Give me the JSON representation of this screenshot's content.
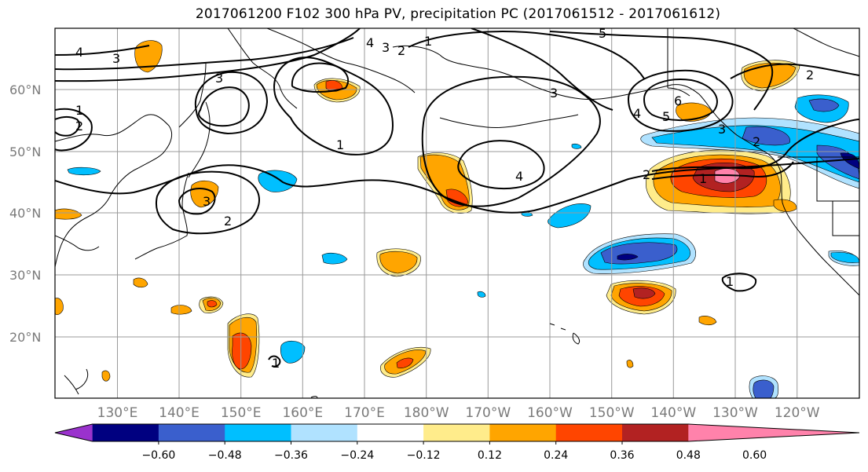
{
  "title": "2017061200 F102 300 hPa PV, precipitation PC (2017061512 - 2017061612)",
  "map": {
    "lat_labels": [
      "60°N",
      "50°N",
      "40°N",
      "30°N",
      "20°N"
    ],
    "lon_labels": [
      "130°E",
      "140°E",
      "150°E",
      "160°E",
      "170°E",
      "180°W",
      "170°W",
      "160°W",
      "150°W",
      "140°W",
      "130°W",
      "120°W"
    ]
  },
  "pv_contour_labels": [
    "5",
    "4",
    "3",
    "3",
    "1",
    "2",
    "3",
    "2",
    "1",
    "4",
    "3",
    "2",
    "1",
    "3",
    "4",
    "5",
    "6",
    "4",
    "1",
    "2",
    "1",
    "2",
    "3",
    "2",
    "1",
    "1"
  ],
  "colorbar": {
    "tick_labels": [
      "−0.60",
      "−0.48",
      "−0.36",
      "−0.24",
      "−0.12",
      "0.12",
      "0.24",
      "0.36",
      "0.48",
      "0.60"
    ],
    "colors": [
      "#9a32cd",
      "#000080",
      "#3a5fcd",
      "#00bfff",
      "#b0e2ff",
      "#ffffff",
      "#ffec8b",
      "#ffa500",
      "#ff4500",
      "#b22222",
      "#ff82ab"
    ]
  }
}
